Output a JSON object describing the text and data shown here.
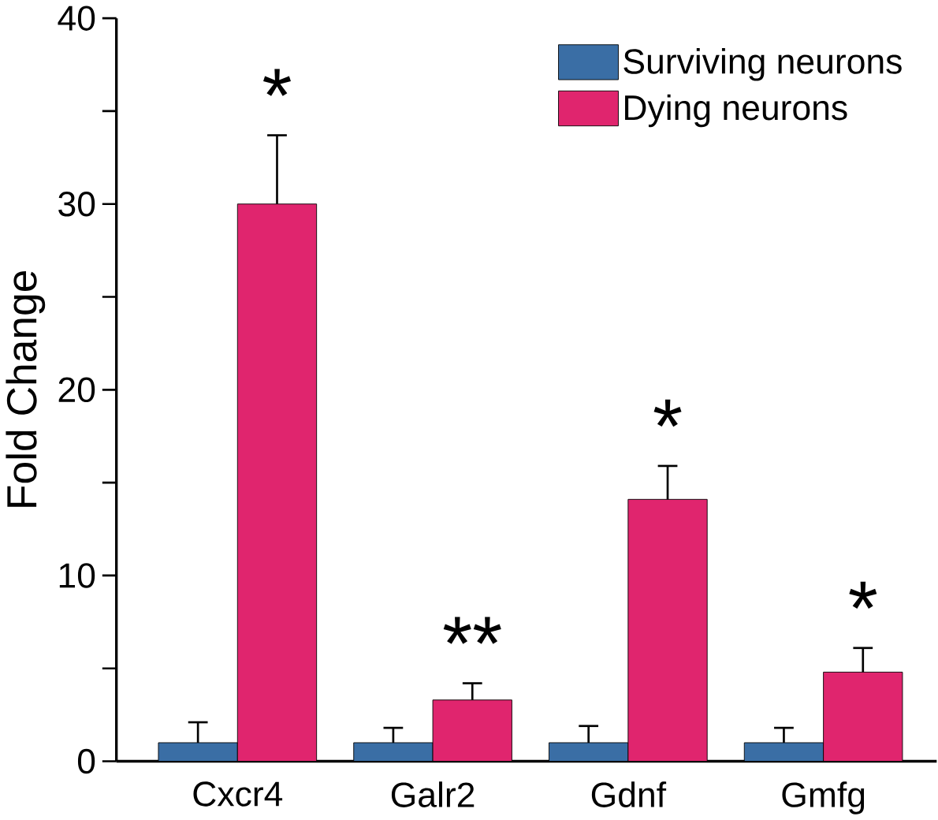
{
  "chart_data": {
    "type": "bar",
    "ylabel": "Fold Change",
    "categories": [
      "Cxcr4",
      "Galr2",
      "Gdnf",
      "Gmfg"
    ],
    "series": [
      {
        "name": "Surviving neurons",
        "color": "#3a6ea5",
        "values": [
          1.0,
          1.0,
          1.0,
          1.0
        ],
        "errors": [
          1.1,
          0.8,
          0.9,
          0.8
        ]
      },
      {
        "name": "Dying neurons",
        "color": "#e0256e",
        "values": [
          30.0,
          3.3,
          14.1,
          4.8
        ],
        "errors": [
          3.7,
          0.9,
          1.8,
          1.3
        ]
      }
    ],
    "ylim": [
      0,
      40
    ],
    "yticks": [
      0,
      {
        "value": 5,
        "label": null
      },
      10,
      {
        "value": 15,
        "label": null
      },
      20,
      {
        "value": 25,
        "label": null
      },
      30,
      {
        "value": 35,
        "label": null
      },
      40
    ],
    "annotations": [
      "*",
      "**",
      "*",
      "*"
    ],
    "legend": "top right",
    "grid": false
  }
}
